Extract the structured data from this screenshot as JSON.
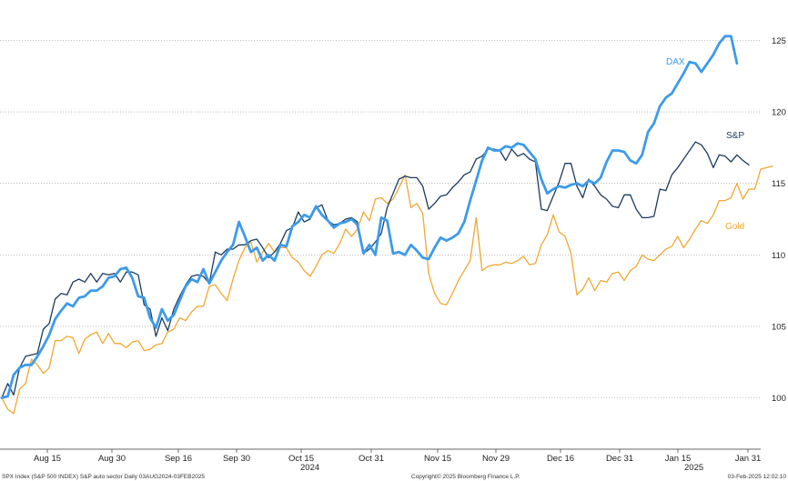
{
  "chart_data": {
    "type": "line",
    "x_tick_labels": [
      "Aug 15",
      "Aug 30",
      "Sep 16",
      "Sep 30",
      "Oct 15",
      "Oct 31",
      "Nov 15",
      "Nov 29",
      "Dec 16",
      "Dec 31",
      "Jan 15",
      "Jan 31"
    ],
    "year_labels": [
      "2024",
      "2025"
    ],
    "y_ticks": [
      100,
      105,
      110,
      115,
      120,
      125
    ],
    "ylim": [
      98.5,
      125.8
    ],
    "xlim": [
      0,
      128
    ],
    "grid": true,
    "y_axis_side": "right",
    "series": [
      {
        "name": "DAX",
        "color": "#3d9be9",
        "values": [
          100.0,
          100.1,
          101.6,
          102.1,
          102.3,
          102.3,
          102.9,
          103.6,
          104.4,
          105.5,
          106.1,
          106.6,
          106.4,
          107.0,
          107.1,
          107.5,
          107.5,
          107.8,
          108.4,
          108.5,
          109.0,
          109.1,
          108.4,
          107.1,
          107.0,
          105.6,
          104.9,
          106.2,
          105.4,
          105.8,
          106.8,
          107.8,
          108.3,
          108.1,
          109.0,
          108.0,
          108.8,
          109.6,
          110.2,
          110.7,
          112.3,
          111.3,
          110.2,
          110.5,
          109.6,
          110.0,
          109.6,
          110.7,
          110.6,
          112.0,
          112.3,
          112.8,
          112.6,
          113.4,
          112.8,
          112.4,
          111.9,
          112.2,
          112.3,
          112.5,
          112.1,
          110.1,
          110.7,
          110.0,
          112.6,
          112.4,
          110.1,
          110.2,
          110.0,
          110.7,
          110.3,
          109.8,
          109.7,
          110.5,
          111.2,
          111.0,
          111.2,
          111.5,
          112.3,
          113.8,
          115.2,
          116.6,
          117.5,
          117.3,
          117.3,
          117.6,
          117.5,
          117.8,
          117.7,
          117.2,
          116.7,
          115.3,
          114.3,
          114.6,
          114.8,
          114.7,
          114.9,
          115.0,
          114.8,
          115.2,
          115.0,
          115.4,
          116.5,
          117.3,
          117.3,
          117.2,
          116.6,
          116.4,
          117.0,
          118.6,
          119.2,
          120.4,
          121.0,
          121.3,
          122.0,
          122.7,
          123.5,
          123.4,
          122.8,
          123.4,
          124.0,
          124.8,
          125.3,
          125.3,
          123.4
        ]
      },
      {
        "name": "S&P",
        "color": "#1c3b5e",
        "values": [
          100.0,
          101.0,
          100.2,
          102.1,
          102.9,
          103.0,
          103.1,
          104.8,
          105.2,
          106.9,
          107.3,
          107.2,
          108.1,
          108.3,
          108.1,
          108.7,
          108.1,
          108.7,
          108.6,
          108.7,
          108.1,
          108.8,
          108.8,
          108.6,
          106.5,
          106.2,
          104.3,
          105.6,
          104.7,
          106.2,
          107.1,
          107.9,
          108.5,
          108.6,
          108.5,
          108.0,
          110.2,
          110.0,
          110.4,
          110.4,
          110.7,
          110.7,
          111.0,
          111.1,
          110.5,
          109.8,
          110.2,
          110.8,
          111.7,
          111.9,
          113.0,
          112.3,
          112.5,
          113.3,
          113.5,
          112.4,
          112.1,
          112.2,
          112.5,
          112.6,
          112.3,
          110.1,
          110.4,
          110.9,
          111.5,
          113.3,
          114.3,
          115.3,
          115.5,
          115.4,
          115.4,
          114.8,
          113.2,
          113.6,
          114.1,
          114.2,
          114.7,
          115.1,
          115.6,
          115.8,
          116.7,
          116.9,
          117.4,
          117.4,
          117.3,
          116.6,
          117.4,
          116.9,
          117.1,
          116.7,
          116.5,
          113.2,
          113.1,
          114.1,
          115.1,
          116.4,
          116.4,
          114.8,
          114.0,
          115.3,
          114.8,
          114.2,
          113.9,
          113.4,
          113.3,
          114.2,
          114.2,
          113.2,
          112.6,
          112.6,
          112.7,
          114.6,
          114.5,
          115.6,
          116.1,
          116.7,
          117.3,
          117.9,
          117.7,
          117.1,
          116.1,
          117.0,
          116.9,
          116.5,
          117.0,
          116.6,
          116.3
        ]
      },
      {
        "name": "Gold",
        "color": "#f0a832",
        "values": [
          100.0,
          99.2,
          98.9,
          100.6,
          101.0,
          102.7,
          102.3,
          101.7,
          102.1,
          104.0,
          104.0,
          104.3,
          104.2,
          103.1,
          104.1,
          104.4,
          104.6,
          103.8,
          104.5,
          103.8,
          103.8,
          103.5,
          103.9,
          104.0,
          103.3,
          103.4,
          103.7,
          103.8,
          104.6,
          104.8,
          105.6,
          105.4,
          106.0,
          106.4,
          106.4,
          107.8,
          107.9,
          107.3,
          106.8,
          108.3,
          109.6,
          110.5,
          110.9,
          109.5,
          110.2,
          110.8,
          110.2,
          110.5,
          110.5,
          109.8,
          109.5,
          108.9,
          108.5,
          109.2,
          110.0,
          110.3,
          110.1,
          110.8,
          111.8,
          111.3,
          111.8,
          113.0,
          112.4,
          113.9,
          114.0,
          113.6,
          113.9,
          114.7,
          115.6,
          113.3,
          113.6,
          112.9,
          108.7,
          107.3,
          106.6,
          106.5,
          107.3,
          108.2,
          108.9,
          109.6,
          112.6,
          108.9,
          109.2,
          109.3,
          109.3,
          109.5,
          109.4,
          109.6,
          109.9,
          109.3,
          109.4,
          110.7,
          111.4,
          112.8,
          111.6,
          111.3,
          110.1,
          107.2,
          107.6,
          108.4,
          107.5,
          108.2,
          108.1,
          108.7,
          108.8,
          108.2,
          108.9,
          109.2,
          110.0,
          109.7,
          109.6,
          110.0,
          110.4,
          110.6,
          111.3,
          110.5,
          111.1,
          111.8,
          112.4,
          112.2,
          112.8,
          113.8,
          113.8,
          114.0,
          115.0,
          113.9,
          114.6,
          114.6,
          116.0,
          116.1,
          116.2
        ]
      }
    ],
    "annotations": [
      "DAX",
      "S&P",
      "Gold"
    ]
  },
  "footer": {
    "left": "SPX Index (S&P 500 INDEX) S&P auto sector  Daily 03AUG2024-03FEB2025",
    "center": "Copyright© 2025 Bloomberg Finance L.P.",
    "right": "03-Feb-2025 12:02:10"
  }
}
